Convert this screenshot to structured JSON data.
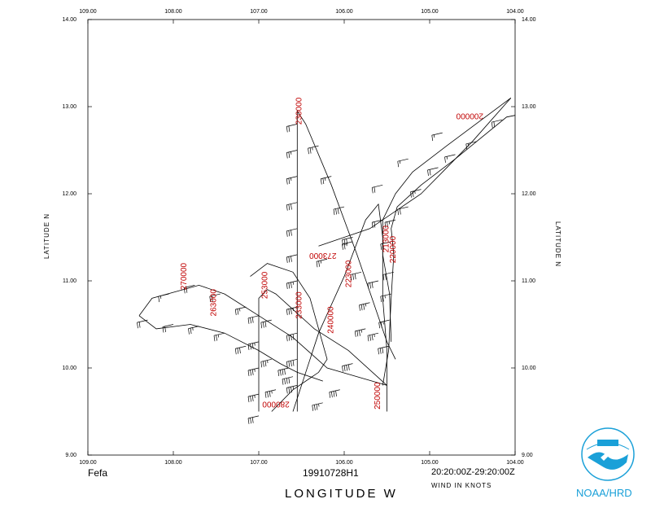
{
  "map": {
    "storm_name": "Fefa",
    "flight_id": "19910728H1",
    "time_span": "20:20:00Z-29:20:00Z",
    "wind_units": "WIND IN KNOTS",
    "x_title": "LONGITUDE  W",
    "y_title_left": "LATITUDE  N",
    "y_title_right": "LATITUDE  N",
    "x_ticks": [
      "109.00",
      "108.00",
      "107.00",
      "106.00",
      "105.00",
      "104.00"
    ],
    "y_ticks": [
      "14.00",
      "13.00",
      "12.00",
      "11.00",
      "10.00",
      "9.00"
    ],
    "lon_range": [
      109.0,
      104.0
    ],
    "lat_range": [
      9.0,
      14.0
    ],
    "label_color": "#c00000",
    "logo_color": "#1aa0d8"
  },
  "logo": {
    "text": "NOAA/HRD",
    "icon": "noaa-bird-logo-icon"
  },
  "chart_data": {
    "type": "scatter",
    "title": "",
    "xlabel": "LONGITUDE  W",
    "ylabel": "LATITUDE  N",
    "xlim": [
      109.0,
      104.0
    ],
    "ylim": [
      9.0,
      14.0
    ],
    "grid": false,
    "time_labels": [
      {
        "text": "270000",
        "lon": 107.85,
        "lat": 11.05,
        "rot": -90
      },
      {
        "text": "263000",
        "lon": 107.5,
        "lat": 10.75,
        "rot": -90
      },
      {
        "text": "253000",
        "lon": 106.9,
        "lat": 10.95,
        "rot": -90
      },
      {
        "text": "233000",
        "lon": 106.5,
        "lat": 10.72,
        "rot": -90
      },
      {
        "text": "230000",
        "lon": 106.5,
        "lat": 12.95,
        "rot": -90
      },
      {
        "text": "273000",
        "lon": 106.25,
        "lat": 11.32,
        "rot": 180
      },
      {
        "text": "223000",
        "lon": 105.92,
        "lat": 11.08,
        "rot": -90
      },
      {
        "text": "240000",
        "lon": 106.13,
        "lat": 10.55,
        "rot": -90
      },
      {
        "text": "213000",
        "lon": 105.48,
        "lat": 11.48,
        "rot": -90
      },
      {
        "text": "220000",
        "lon": 105.4,
        "lat": 11.36,
        "rot": -90
      },
      {
        "text": "250000",
        "lon": 105.58,
        "lat": 9.68,
        "rot": -90
      },
      {
        "text": "280000",
        "lon": 106.8,
        "lat": 9.61,
        "rot": 180
      },
      {
        "text": "200000",
        "lon": 104.53,
        "lat": 12.92,
        "rot": 180
      }
    ],
    "tracks": [
      [
        [
          104.0,
          12.9
        ],
        [
          104.1,
          12.88
        ],
        [
          104.7,
          12.4
        ],
        [
          105.1,
          12.1
        ],
        [
          105.38,
          11.85
        ],
        [
          105.45,
          11.6
        ],
        [
          105.42,
          11.3
        ],
        [
          105.45,
          10.8
        ],
        [
          105.48,
          10.2
        ],
        [
          105.55,
          9.8
        ]
      ],
      [
        [
          104.05,
          13.1
        ],
        [
          104.8,
          12.55
        ],
        [
          105.2,
          12.25
        ],
        [
          105.4,
          12.0
        ],
        [
          105.55,
          11.7
        ],
        [
          105.55,
          11.3
        ],
        [
          105.47,
          10.85
        ],
        [
          105.45,
          10.3
        ]
      ],
      [
        [
          105.5,
          9.5
        ],
        [
          105.5,
          10.2
        ],
        [
          105.55,
          10.8
        ],
        [
          105.55,
          11.5
        ],
        [
          105.6,
          11.88
        ],
        [
          105.75,
          11.7
        ],
        [
          106.0,
          11.05
        ],
        [
          106.3,
          10.4
        ],
        [
          106.6,
          9.5
        ]
      ],
      [
        [
          106.55,
          9.5
        ],
        [
          106.55,
          10.5
        ],
        [
          106.55,
          11.5
        ],
        [
          106.55,
          12.4
        ],
        [
          106.55,
          12.95
        ],
        [
          106.45,
          12.8
        ],
        [
          106.15,
          12.1
        ],
        [
          105.85,
          11.3
        ],
        [
          105.5,
          10.3
        ],
        [
          105.4,
          10.1
        ]
      ],
      [
        [
          108.4,
          10.6
        ],
        [
          108.25,
          10.8
        ],
        [
          107.7,
          10.95
        ],
        [
          107.4,
          10.85
        ],
        [
          107.0,
          10.6
        ],
        [
          106.6,
          10.35
        ],
        [
          106.2,
          10.0
        ],
        [
          105.85,
          9.9
        ],
        [
          105.5,
          9.8
        ]
      ],
      [
        [
          108.4,
          10.6
        ],
        [
          108.2,
          10.45
        ],
        [
          107.8,
          10.5
        ],
        [
          107.4,
          10.4
        ],
        [
          107.0,
          10.2
        ],
        [
          106.75,
          10.05
        ],
        [
          106.55,
          9.95
        ],
        [
          106.25,
          9.85
        ]
      ],
      [
        [
          107.0,
          9.5
        ],
        [
          107.0,
          10.2
        ],
        [
          107.0,
          10.8
        ],
        [
          106.9,
          10.9
        ],
        [
          106.8,
          10.85
        ],
        [
          106.35,
          10.45
        ],
        [
          105.95,
          10.2
        ],
        [
          105.5,
          9.8
        ]
      ],
      [
        [
          106.85,
          9.5
        ],
        [
          106.6,
          9.75
        ],
        [
          106.3,
          9.95
        ],
        [
          106.2,
          10.1
        ],
        [
          106.4,
          10.8
        ],
        [
          106.6,
          11.1
        ],
        [
          106.9,
          11.2
        ],
        [
          107.1,
          11.05
        ]
      ],
      [
        [
          106.3,
          11.4
        ],
        [
          106.0,
          11.5
        ],
        [
          105.7,
          11.6
        ],
        [
          105.4,
          11.8
        ],
        [
          105.1,
          12.0
        ],
        [
          104.85,
          12.25
        ],
        [
          104.5,
          12.6
        ],
        [
          104.05,
          13.1
        ]
      ]
    ],
    "wind_barbs": [
      {
        "lon": 104.15,
        "lat": 12.85,
        "speed": 20
      },
      {
        "lon": 104.45,
        "lat": 12.6,
        "speed": 15
      },
      {
        "lon": 104.7,
        "lat": 12.45,
        "speed": 15
      },
      {
        "lon": 104.9,
        "lat": 12.3,
        "speed": 20
      },
      {
        "lon": 105.1,
        "lat": 12.05,
        "speed": 25
      },
      {
        "lon": 105.25,
        "lat": 11.85,
        "speed": 20
      },
      {
        "lon": 105.4,
        "lat": 11.7,
        "speed": 25
      },
      {
        "lon": 105.45,
        "lat": 11.45,
        "speed": 20
      },
      {
        "lon": 105.42,
        "lat": 11.1,
        "speed": 20
      },
      {
        "lon": 105.45,
        "lat": 10.85,
        "speed": 25
      },
      {
        "lon": 105.47,
        "lat": 10.55,
        "speed": 25
      },
      {
        "lon": 105.48,
        "lat": 10.25,
        "speed": 30
      },
      {
        "lon": 104.85,
        "lat": 12.7,
        "speed": 15
      },
      {
        "lon": 105.25,
        "lat": 12.4,
        "speed": 15
      },
      {
        "lon": 105.55,
        "lat": 12.1,
        "speed": 20
      },
      {
        "lon": 106.55,
        "lat": 12.8,
        "speed": 20
      },
      {
        "lon": 106.55,
        "lat": 12.5,
        "speed": 25
      },
      {
        "lon": 106.55,
        "lat": 12.2,
        "speed": 25
      },
      {
        "lon": 106.55,
        "lat": 11.9,
        "speed": 30
      },
      {
        "lon": 106.55,
        "lat": 11.6,
        "speed": 30
      },
      {
        "lon": 106.55,
        "lat": 11.3,
        "speed": 30
      },
      {
        "lon": 106.55,
        "lat": 11.0,
        "speed": 35
      },
      {
        "lon": 106.55,
        "lat": 10.7,
        "speed": 35
      },
      {
        "lon": 106.55,
        "lat": 10.4,
        "speed": 40
      },
      {
        "lon": 106.55,
        "lat": 10.1,
        "speed": 40
      },
      {
        "lon": 106.55,
        "lat": 9.8,
        "speed": 35
      },
      {
        "lon": 106.3,
        "lat": 12.55,
        "speed": 25
      },
      {
        "lon": 106.15,
        "lat": 12.2,
        "speed": 25
      },
      {
        "lon": 106.0,
        "lat": 11.85,
        "speed": 30
      },
      {
        "lon": 105.9,
        "lat": 11.5,
        "speed": 30
      },
      {
        "lon": 105.8,
        "lat": 11.1,
        "speed": 30
      },
      {
        "lon": 105.7,
        "lat": 10.75,
        "speed": 35
      },
      {
        "lon": 105.6,
        "lat": 10.4,
        "speed": 35
      },
      {
        "lon": 105.6,
        "lat": 11.0,
        "speed": 30
      },
      {
        "lon": 105.75,
        "lat": 10.45,
        "speed": 35
      },
      {
        "lon": 105.9,
        "lat": 10.05,
        "speed": 40
      },
      {
        "lon": 106.05,
        "lat": 9.75,
        "speed": 40
      },
      {
        "lon": 106.25,
        "lat": 9.6,
        "speed": 35
      },
      {
        "lon": 108.3,
        "lat": 10.55,
        "speed": 20
      },
      {
        "lon": 108.0,
        "lat": 10.5,
        "speed": 20
      },
      {
        "lon": 107.7,
        "lat": 10.48,
        "speed": 25
      },
      {
        "lon": 107.4,
        "lat": 10.4,
        "speed": 25
      },
      {
        "lon": 107.15,
        "lat": 10.25,
        "speed": 30
      },
      {
        "lon": 106.85,
        "lat": 10.1,
        "speed": 35
      },
      {
        "lon": 106.65,
        "lat": 10.0,
        "speed": 40
      },
      {
        "lon": 108.05,
        "lat": 10.85,
        "speed": 15
      },
      {
        "lon": 107.75,
        "lat": 10.95,
        "speed": 20
      },
      {
        "lon": 107.45,
        "lat": 10.85,
        "speed": 20
      },
      {
        "lon": 107.15,
        "lat": 10.7,
        "speed": 25
      },
      {
        "lon": 106.85,
        "lat": 10.55,
        "speed": 30
      },
      {
        "lon": 107.0,
        "lat": 10.6,
        "speed": 30
      },
      {
        "lon": 107.0,
        "lat": 10.3,
        "speed": 35
      },
      {
        "lon": 107.0,
        "lat": 10.0,
        "speed": 35
      },
      {
        "lon": 107.0,
        "lat": 9.7,
        "speed": 35
      },
      {
        "lon": 107.0,
        "lat": 9.45,
        "speed": 30
      },
      {
        "lon": 106.8,
        "lat": 9.75,
        "speed": 35
      },
      {
        "lon": 106.6,
        "lat": 9.9,
        "speed": 40
      },
      {
        "lon": 106.2,
        "lat": 11.25,
        "speed": 25
      },
      {
        "lon": 105.9,
        "lat": 11.45,
        "speed": 25
      },
      {
        "lon": 105.55,
        "lat": 11.7,
        "speed": 20
      }
    ]
  }
}
